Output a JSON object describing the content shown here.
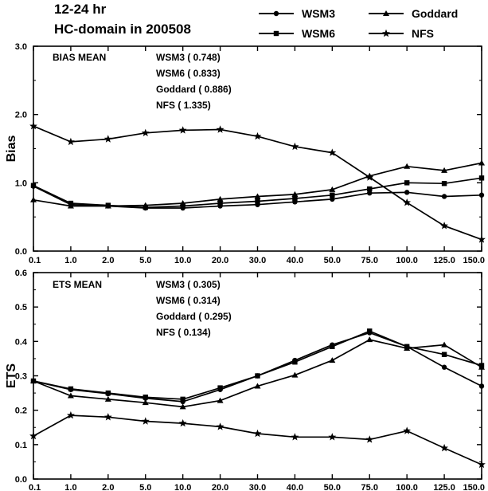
{
  "figure": {
    "title_line1": "12-24 hr",
    "title_line2": "HC-domain in 200508"
  },
  "legend": [
    {
      "name": "WSM3",
      "marker": "circle"
    },
    {
      "name": "Goddard",
      "marker": "triangle"
    },
    {
      "name": "WSM6",
      "marker": "square"
    },
    {
      "name": "NFS",
      "marker": "star"
    }
  ],
  "chart_data": [
    {
      "type": "line",
      "ylabel": "Bias",
      "ylim": [
        0.0,
        3.0
      ],
      "yticks": [
        "0.0",
        "1.0",
        "2.0",
        "3.0"
      ],
      "categories": [
        "0.1",
        "1.0",
        "2.0",
        "5.0",
        "10.0",
        "20.0",
        "30.0",
        "40.0",
        "50.0",
        "75.0",
        "100.0",
        "125.0",
        "150.0"
      ],
      "annotation": {
        "heading": "BIAS MEAN",
        "lines": [
          "WSM3 ( 0.748)",
          "WSM6 ( 0.833)",
          "Goddard ( 0.886)",
          "NFS ( 1.335)"
        ]
      },
      "series": [
        {
          "name": "WSM3",
          "marker": "circle",
          "values": [
            0.95,
            0.68,
            0.66,
            0.63,
            0.63,
            0.66,
            0.68,
            0.72,
            0.76,
            0.85,
            0.86,
            0.8,
            0.82
          ]
        },
        {
          "name": "WSM6",
          "marker": "square",
          "values": [
            0.96,
            0.7,
            0.67,
            0.64,
            0.66,
            0.7,
            0.73,
            0.77,
            0.82,
            0.91,
            1.0,
            0.99,
            1.07
          ]
        },
        {
          "name": "Goddard",
          "marker": "triangle",
          "values": [
            0.75,
            0.66,
            0.66,
            0.67,
            0.7,
            0.76,
            0.8,
            0.83,
            0.9,
            1.1,
            1.24,
            1.18,
            1.29
          ]
        },
        {
          "name": "NFS",
          "marker": "star",
          "values": [
            1.83,
            1.6,
            1.64,
            1.73,
            1.77,
            1.78,
            1.68,
            1.53,
            1.44,
            1.08,
            0.71,
            0.37,
            0.17
          ]
        }
      ]
    },
    {
      "type": "line",
      "ylabel": "ETS",
      "ylim": [
        0.0,
        0.6
      ],
      "yticks": [
        "0.0",
        "0.1",
        "0.2",
        "0.3",
        "0.4",
        "0.5",
        "0.6"
      ],
      "categories": [
        "0.1",
        "1.0",
        "2.0",
        "5.0",
        "10.0",
        "20.0",
        "30.0",
        "40.0",
        "50.0",
        "75.0",
        "100.0",
        "125.0",
        "150.0"
      ],
      "annotation": {
        "heading": "ETS MEAN",
        "lines": [
          "WSM3 ( 0.305)",
          "WSM6 ( 0.314)",
          "Goddard ( 0.295)",
          "NFS ( 0.134)"
        ]
      },
      "series": [
        {
          "name": "WSM3",
          "marker": "circle",
          "values": [
            0.285,
            0.26,
            0.248,
            0.235,
            0.225,
            0.26,
            0.3,
            0.345,
            0.39,
            0.425,
            0.385,
            0.325,
            0.27
          ]
        },
        {
          "name": "WSM6",
          "marker": "square",
          "values": [
            0.285,
            0.262,
            0.25,
            0.238,
            0.232,
            0.265,
            0.3,
            0.34,
            0.385,
            0.43,
            0.385,
            0.362,
            0.33
          ]
        },
        {
          "name": "Goddard",
          "marker": "triangle",
          "values": [
            0.285,
            0.242,
            0.232,
            0.222,
            0.21,
            0.228,
            0.27,
            0.302,
            0.345,
            0.405,
            0.38,
            0.39,
            0.325
          ]
        },
        {
          "name": "NFS",
          "marker": "star",
          "values": [
            0.125,
            0.185,
            0.18,
            0.168,
            0.162,
            0.152,
            0.132,
            0.122,
            0.122,
            0.115,
            0.14,
            0.09,
            0.042
          ]
        }
      ]
    }
  ]
}
